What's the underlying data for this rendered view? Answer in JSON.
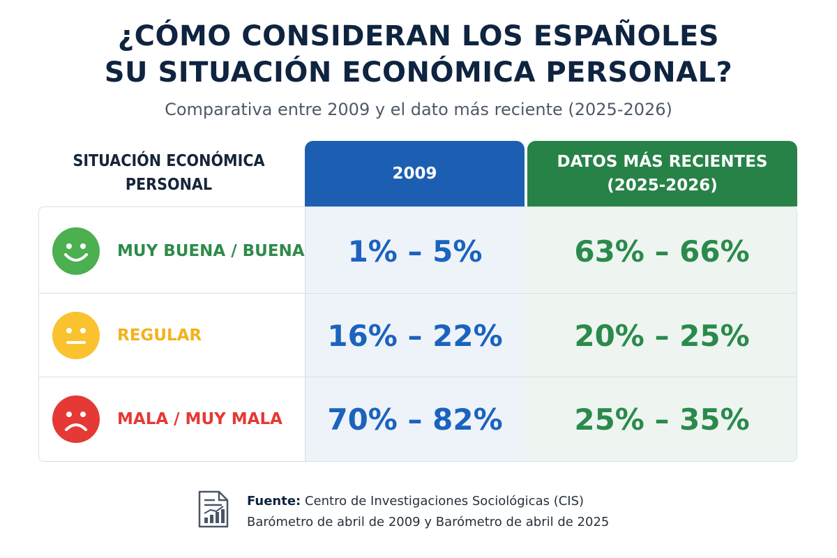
{
  "title": {
    "line1": "¿CÓMO CONSIDERAN LOS ESPAÑOLES",
    "line2": "SU SITUACIÓN ECONÓMICA PERSONAL?"
  },
  "subtitle": "Comparativa entre 2009 y el dato más reciente (2025-2026)",
  "table": {
    "row_header": {
      "line1": "SITUACIÓN ECONÓMICA",
      "line2": "PERSONAL"
    },
    "columns": [
      {
        "line1": "2009",
        "line2": ""
      },
      {
        "line1": "DATOS MÁS RECIENTES",
        "line2": "(2025-2026)"
      }
    ],
    "rows": [
      {
        "label": "MUY BUENA / BUENA",
        "icon": "happy-face-icon",
        "color": "#2e8b4a",
        "face_color": "#4caf50",
        "v2009": "1% – 5%",
        "recent": "63% – 66%"
      },
      {
        "label": "REGULAR",
        "icon": "neutral-face-icon",
        "color": "#f2b21b",
        "face_color": "#f9c22e",
        "v2009": "16% – 22%",
        "recent": "20% – 25%"
      },
      {
        "label": "MALA / MUY MALA",
        "icon": "sad-face-icon",
        "color": "#e53935",
        "face_color": "#e53935",
        "v2009": "70% – 82%",
        "recent": "25% – 35%"
      }
    ]
  },
  "source": {
    "label": "Fuente:",
    "text": "Centro de Investigaciones Sociológicas (CIS)",
    "line2": "Barómetro de abril de 2009 y Barómetro de abril de 2025"
  },
  "colors": {
    "header_2009": "#1c5fb2",
    "header_recent": "#278247",
    "value_2009": "#1b63bd",
    "value_recent": "#2a8a4c",
    "title": "#0e2440"
  }
}
